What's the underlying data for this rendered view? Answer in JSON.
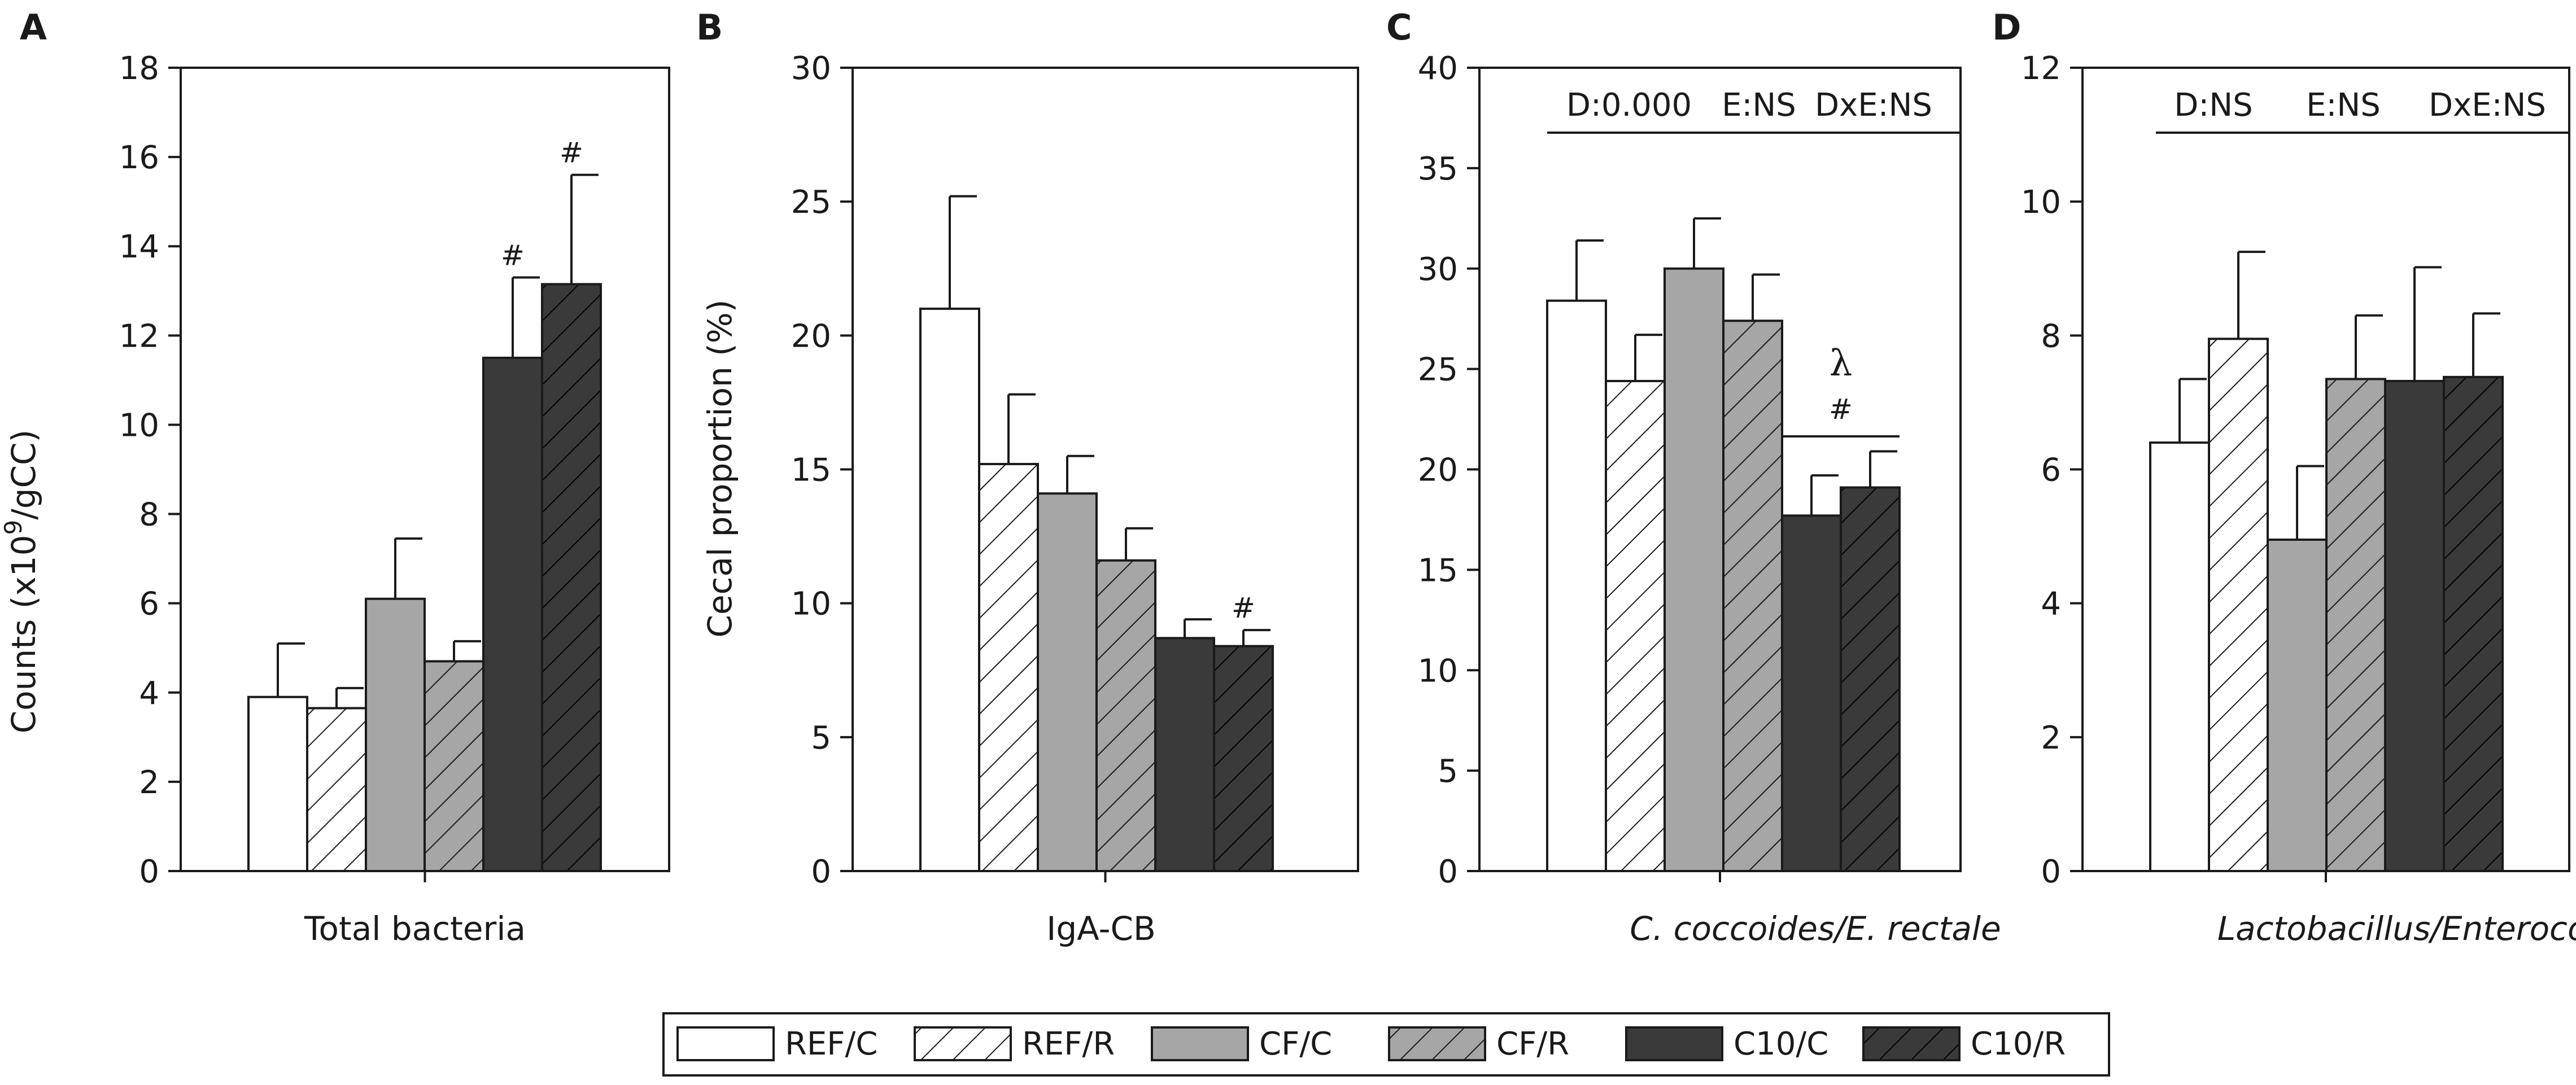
{
  "legend": {
    "entries": [
      {
        "label": "REF/C",
        "fill": "white",
        "hatch": false
      },
      {
        "label": "REF/R",
        "fill": "white",
        "hatch": true
      },
      {
        "label": "CF/C",
        "fill": "#a6a6a6",
        "hatch": false
      },
      {
        "label": "CF/R",
        "fill": "#a6a6a6",
        "hatch": true
      },
      {
        "label": "C10/C",
        "fill": "#3a3a3a",
        "hatch": false
      },
      {
        "label": "C10/R",
        "fill": "#3a3a3a",
        "hatch": true
      }
    ]
  },
  "colors": {
    "white": "#ffffff",
    "gray": "#a6a6a6",
    "dark": "#3a3a3a",
    "ink": "#1a1a1a"
  },
  "chart_data": [
    {
      "panel_letter": "A",
      "type": "bar",
      "xlabel": "Total bacteria",
      "xlabel_italic": false,
      "ylabel": "Counts (x10",
      "ylabel_sup": "9",
      "ylabel_tail": "/gCC)",
      "ylim": [
        0,
        18
      ],
      "yticks": [
        "0",
        "2",
        "4",
        "6",
        "8",
        "10",
        "12",
        "14",
        "16",
        "18"
      ],
      "series": [
        {
          "name": "REF/C",
          "value": 3.9,
          "error": 1.2,
          "marks": []
        },
        {
          "name": "REF/R",
          "value": 3.65,
          "error": 0.45,
          "marks": []
        },
        {
          "name": "CF/C",
          "value": 6.1,
          "error": 1.35,
          "marks": []
        },
        {
          "name": "CF/R",
          "value": 4.7,
          "error": 0.45,
          "marks": []
        },
        {
          "name": "C10/C",
          "value": 11.5,
          "error": 1.8,
          "marks": [
            "#"
          ]
        },
        {
          "name": "C10/R",
          "value": 13.15,
          "error": 2.45,
          "marks": [
            "#"
          ]
        }
      ],
      "stats": null,
      "bracket_marks": null
    },
    {
      "panel_letter": "B",
      "type": "bar",
      "xlabel": "IgA-CB",
      "xlabel_italic": false,
      "ylabel": "Cecal proportion (%)",
      "ylabel_sup": "",
      "ylabel_tail": "",
      "ylim": [
        0,
        30
      ],
      "yticks": [
        "0",
        "5",
        "10",
        "15",
        "20",
        "25",
        "30"
      ],
      "series": [
        {
          "name": "REF/C",
          "value": 21.0,
          "error": 4.2,
          "marks": []
        },
        {
          "name": "REF/R",
          "value": 15.2,
          "error": 2.6,
          "marks": []
        },
        {
          "name": "CF/C",
          "value": 14.1,
          "error": 1.4,
          "marks": []
        },
        {
          "name": "CF/R",
          "value": 11.6,
          "error": 1.2,
          "marks": []
        },
        {
          "name": "C10/C",
          "value": 8.7,
          "error": 0.7,
          "marks": []
        },
        {
          "name": "C10/R",
          "value": 8.4,
          "error": 0.6,
          "marks": [
            "#"
          ]
        }
      ],
      "stats": null,
      "bracket_marks": null
    },
    {
      "panel_letter": "C",
      "type": "bar",
      "xlabel": "C. coccoides/E. rectale",
      "xlabel_italic": true,
      "ylabel": "",
      "ylabel_sup": "",
      "ylabel_tail": "",
      "ylim": [
        0,
        40
      ],
      "yticks": [
        "0",
        "5",
        "10",
        "15",
        "20",
        "25",
        "30",
        "35",
        "40"
      ],
      "series": [
        {
          "name": "REF/C",
          "value": 28.4,
          "error": 3.0,
          "marks": []
        },
        {
          "name": "REF/R",
          "value": 24.4,
          "error": 2.3,
          "marks": []
        },
        {
          "name": "CF/C",
          "value": 30.0,
          "error": 2.5,
          "marks": []
        },
        {
          "name": "CF/R",
          "value": 27.4,
          "error": 2.3,
          "marks": []
        },
        {
          "name": "C10/C",
          "value": 17.7,
          "error": 2.0,
          "marks": []
        },
        {
          "name": "C10/R",
          "value": 19.1,
          "error": 1.8,
          "marks": []
        }
      ],
      "stats": [
        "D:0.000",
        "E:NS",
        "DxE:NS"
      ],
      "bracket_marks": [
        "#",
        "λ"
      ]
    },
    {
      "panel_letter": "D",
      "type": "bar",
      "xlabel": "Lactobacillus/Enterococcus",
      "xlabel_italic": true,
      "ylabel": "",
      "ylabel_sup": "",
      "ylabel_tail": "",
      "ylim": [
        0,
        12
      ],
      "yticks": [
        "0",
        "2",
        "4",
        "6",
        "8",
        "10",
        "12"
      ],
      "series": [
        {
          "name": "REF/C",
          "value": 6.4,
          "error": 0.95,
          "marks": []
        },
        {
          "name": "REF/R",
          "value": 7.95,
          "error": 1.3,
          "marks": []
        },
        {
          "name": "CF/C",
          "value": 4.95,
          "error": 1.1,
          "marks": []
        },
        {
          "name": "CF/R",
          "value": 7.35,
          "error": 0.95,
          "marks": []
        },
        {
          "name": "C10/C",
          "value": 7.32,
          "error": 1.7,
          "marks": []
        },
        {
          "name": "C10/R",
          "value": 7.38,
          "error": 0.95,
          "marks": []
        }
      ],
      "stats": [
        "D:NS",
        "E:NS",
        "DxE:NS"
      ],
      "bracket_marks": null
    }
  ]
}
